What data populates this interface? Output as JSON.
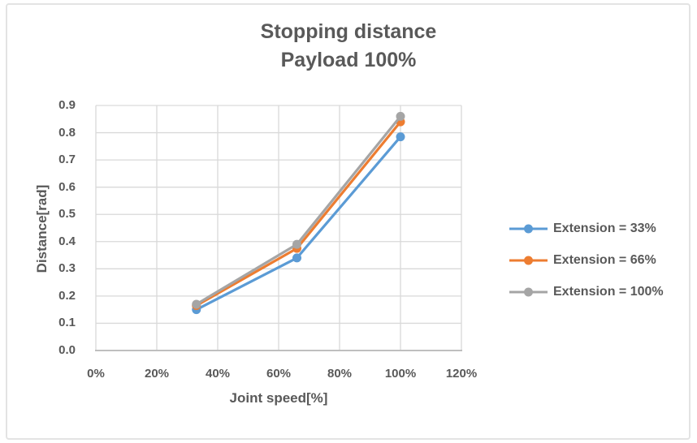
{
  "chart_data": {
    "type": "line",
    "title": "Stopping distance",
    "subtitle": "Payload 100%",
    "xlabel": "Joint speed[%]",
    "ylabel": "Distance[rad]",
    "xlim": [
      0,
      120
    ],
    "ylim": [
      0,
      0.9
    ],
    "grid": true,
    "legend_position": "right",
    "marker": "circle",
    "x_ticks": {
      "values": [
        0,
        20,
        40,
        60,
        80,
        100,
        120
      ],
      "labels": [
        "0%",
        "20%",
        "40%",
        "60%",
        "80%",
        "100%",
        "120%"
      ]
    },
    "y_ticks": {
      "values": [
        0,
        0.1,
        0.2,
        0.3,
        0.4,
        0.5,
        0.6,
        0.7,
        0.8,
        0.9
      ],
      "labels": [
        "0.0",
        "0.1",
        "0.2",
        "0.3",
        "0.4",
        "0.5",
        "0.6",
        "0.7",
        "0.8",
        "0.9"
      ]
    },
    "x": [
      33,
      66,
      100
    ],
    "series": [
      {
        "name": "Extension = 33%",
        "color": "#5B9BD5",
        "values": [
          0.15,
          0.34,
          0.785
        ]
      },
      {
        "name": "Extension = 66%",
        "color": "#ED7D31",
        "values": [
          0.165,
          0.375,
          0.84
        ]
      },
      {
        "name": "Extension = 100%",
        "color": "#A5A5A5",
        "values": [
          0.17,
          0.39,
          0.86
        ]
      }
    ]
  },
  "colors": {
    "text": "#595959",
    "gridline": "#D9D9D9",
    "axis_line": "#BFBFBF",
    "frame_border": "#E3E3E3",
    "background": "#FFFFFF"
  }
}
